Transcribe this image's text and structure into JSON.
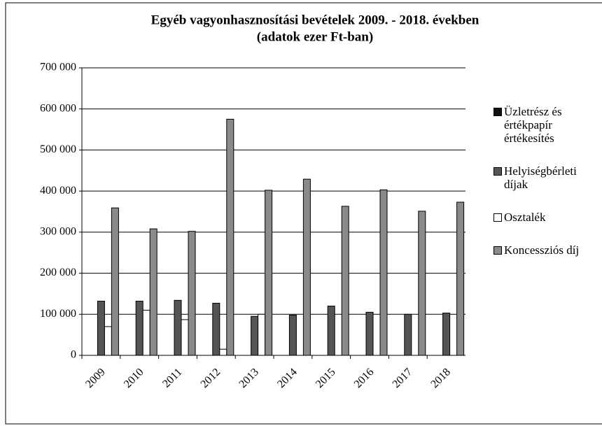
{
  "chart_data": {
    "type": "bar",
    "title": "Egyéb vagyonhasznosítási bevételek 2009. - 2018. években",
    "subtitle": "(adatok ezer Ft-ban)",
    "categories": [
      "2009",
      "2010",
      "2011",
      "2012",
      "2013",
      "2014",
      "2015",
      "2016",
      "2017",
      "2018"
    ],
    "series": [
      {
        "name": "Üzletrész és értékpapír értékesítés",
        "color": "#111111",
        "values": [
          0,
          0,
          0,
          0,
          0,
          0,
          0,
          0,
          0,
          0
        ]
      },
      {
        "name": "Helyiségbérleti díjak",
        "color": "#555555",
        "values": [
          132000,
          132000,
          134000,
          127000,
          95000,
          98000,
          120000,
          105000,
          100000,
          103000
        ]
      },
      {
        "name": "Osztalék",
        "color": "#ffffff",
        "values": [
          70000,
          110000,
          87000,
          15000,
          100000,
          0,
          0,
          0,
          0,
          0
        ]
      },
      {
        "name": "Koncessziós díj",
        "color": "#8a8a8a",
        "values": [
          359000,
          308000,
          302000,
          575000,
          402000,
          429000,
          363000,
          403000,
          351000,
          373000
        ]
      }
    ],
    "ylim": [
      0,
      700000
    ],
    "yticks": [
      0,
      {
        "value": 100000,
        "label": "100 000"
      },
      {
        "value": 200000,
        "label": "200 000"
      },
      {
        "value": 300000,
        "label": "300 000"
      },
      {
        "value": 400000,
        "label": "400 000"
      },
      {
        "value": 500000,
        "label": "500 000"
      },
      {
        "value": 600000,
        "label": "600 000"
      },
      {
        "value": 700000,
        "label": "700 000"
      }
    ],
    "grid": true,
    "legend": "right"
  }
}
